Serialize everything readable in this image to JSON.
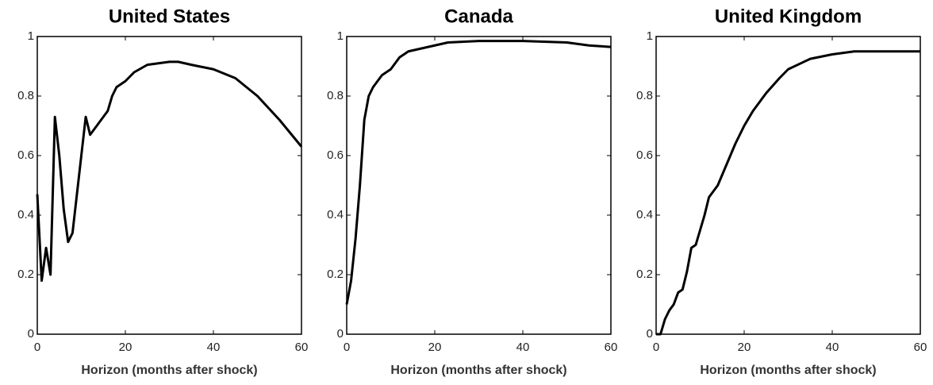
{
  "chart_data": [
    {
      "type": "line",
      "title": "United States",
      "x_label": "Horizon (months after shock)",
      "color": "#000000",
      "x": [
        0,
        1,
        2,
        3,
        4,
        5,
        6,
        7,
        8,
        9,
        10,
        11,
        12,
        14,
        16,
        17,
        18,
        20,
        22,
        25,
        30,
        32,
        35,
        40,
        45,
        50,
        55,
        60
      ],
      "values": [
        0.47,
        0.18,
        0.29,
        0.2,
        0.73,
        0.6,
        0.42,
        0.31,
        0.34,
        0.47,
        0.6,
        0.73,
        0.67,
        0.71,
        0.75,
        0.8,
        0.83,
        0.85,
        0.88,
        0.905,
        0.915,
        0.915,
        0.905,
        0.89,
        0.86,
        0.8,
        0.72,
        0.63
      ],
      "xlim": [
        0,
        60
      ],
      "ylim": [
        0,
        1
      ],
      "xticks": [
        0,
        20,
        40,
        60
      ],
      "yticks": [
        0,
        0.2,
        0.4,
        0.6,
        0.8,
        1
      ]
    },
    {
      "type": "line",
      "title": "Canada",
      "x_label": "Horizon (months after shock)",
      "color": "#000000",
      "x": [
        0,
        1,
        2,
        3,
        4,
        5,
        6,
        8,
        10,
        12,
        14,
        17,
        20,
        23,
        30,
        40,
        50,
        55,
        60
      ],
      "values": [
        0.1,
        0.18,
        0.32,
        0.5,
        0.72,
        0.8,
        0.83,
        0.87,
        0.89,
        0.93,
        0.95,
        0.96,
        0.97,
        0.98,
        0.985,
        0.985,
        0.98,
        0.97,
        0.965
      ],
      "xlim": [
        0,
        60
      ],
      "ylim": [
        0,
        1
      ],
      "xticks": [
        0,
        20,
        40,
        60
      ],
      "yticks": [
        0,
        0.2,
        0.4,
        0.6,
        0.8,
        1
      ]
    },
    {
      "type": "line",
      "title": "United Kingdom",
      "x_label": "Horizon (months after shock)",
      "color": "#000000",
      "x": [
        0,
        1,
        2,
        3,
        4,
        5,
        6,
        7,
        8,
        9,
        10,
        11,
        12,
        14,
        16,
        18,
        20,
        22,
        25,
        28,
        30,
        35,
        40,
        45,
        50,
        55,
        60
      ],
      "values": [
        0,
        0,
        0.05,
        0.08,
        0.1,
        0.14,
        0.15,
        0.21,
        0.29,
        0.3,
        0.35,
        0.4,
        0.46,
        0.5,
        0.57,
        0.64,
        0.7,
        0.75,
        0.81,
        0.86,
        0.89,
        0.925,
        0.94,
        0.95,
        0.95,
        0.95,
        0.95
      ],
      "xlim": [
        0,
        60
      ],
      "ylim": [
        0,
        1
      ],
      "xticks": [
        0,
        20,
        40,
        60
      ],
      "yticks": [
        0,
        0.2,
        0.4,
        0.6,
        0.8,
        1
      ]
    }
  ]
}
